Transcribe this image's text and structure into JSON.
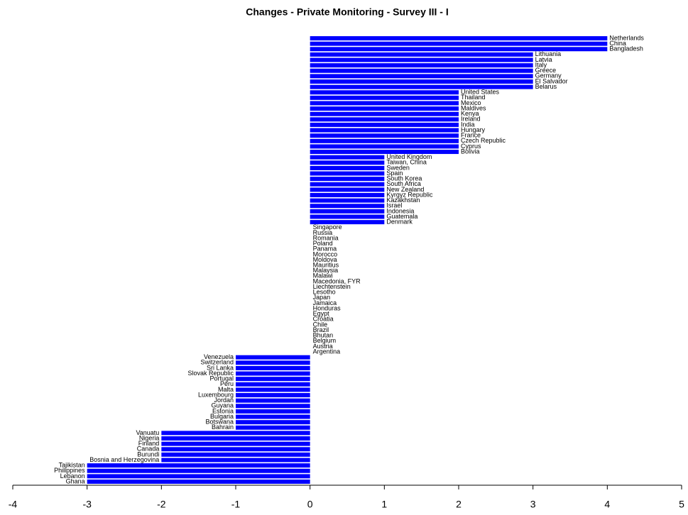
{
  "chart_data": {
    "type": "barh",
    "title": "Changes - Private Monitoring - Survey III - I",
    "color": "#0000ff",
    "categories": [
      "Netherlands",
      "China",
      "Bangladesh",
      "Lithuania",
      "Latvia",
      "Italy",
      "Greece",
      "Germany",
      "El Salvador",
      "Belarus",
      "United States",
      "Thailand",
      "Mexico",
      "Maldives",
      "Kenya",
      "Ireland",
      "India",
      "Hungary",
      "France",
      "Czech Republic",
      "Cyprus",
      "Bolivia",
      "United Kingdom",
      "Taiwan, China",
      "Sweden",
      "Spain",
      "South Korea",
      "South Africa",
      "New Zealand",
      "Kyrgyz Republic",
      "Kazakhstan",
      "Israel",
      "Indonesia",
      "Guatemala",
      "Denmark",
      "Singapore",
      "Russia",
      "Romania",
      "Poland",
      "Panama",
      "Morocco",
      "Moldova",
      "Mauritius",
      "Malaysia",
      "Malawi",
      "Macedonia, FYR",
      "Liechtenstein",
      "Lesotho",
      "Japan",
      "Jamaica",
      "Honduras",
      "Egypt",
      "Croatia",
      "Chile",
      "Brazil",
      "Bhutan",
      "Belgium",
      "Austria",
      "Argentina",
      "Venezuela",
      "Switzerland",
      "Sri Lanka",
      "Slovak Republic",
      "Portugal",
      "Peru",
      "Malta",
      "Luxembourg",
      "Jordan",
      "Guyana",
      "Estonia",
      "Bulgaria",
      "Botswana",
      "Bahrain",
      "Vanuatu",
      "Nigeria",
      "Finland",
      "Canada",
      "Burundi",
      "Bosnia and Herzegovina",
      "Tajikistan",
      "Philippines",
      "Lebanon",
      "Ghana"
    ],
    "values": [
      4,
      4,
      4,
      3,
      3,
      3,
      3,
      3,
      3,
      3,
      2,
      2,
      2,
      2,
      2,
      2,
      2,
      2,
      2,
      2,
      2,
      2,
      1,
      1,
      1,
      1,
      1,
      1,
      1,
      1,
      1,
      1,
      1,
      1,
      1,
      0,
      0,
      0,
      0,
      0,
      0,
      0,
      0,
      0,
      0,
      0,
      0,
      0,
      0,
      0,
      0,
      0,
      0,
      0,
      0,
      0,
      0,
      0,
      0,
      -1,
      -1,
      -1,
      -1,
      -1,
      -1,
      -1,
      -1,
      -1,
      -1,
      -1,
      -1,
      -1,
      -1,
      -2,
      -2,
      -2,
      -2,
      -2,
      -2,
      -3,
      -3,
      -3,
      -3
    ],
    "xlim": [
      -4,
      5
    ],
    "xticks": [
      -4,
      -3,
      -2,
      -1,
      0,
      1,
      2,
      3,
      4,
      5
    ]
  }
}
